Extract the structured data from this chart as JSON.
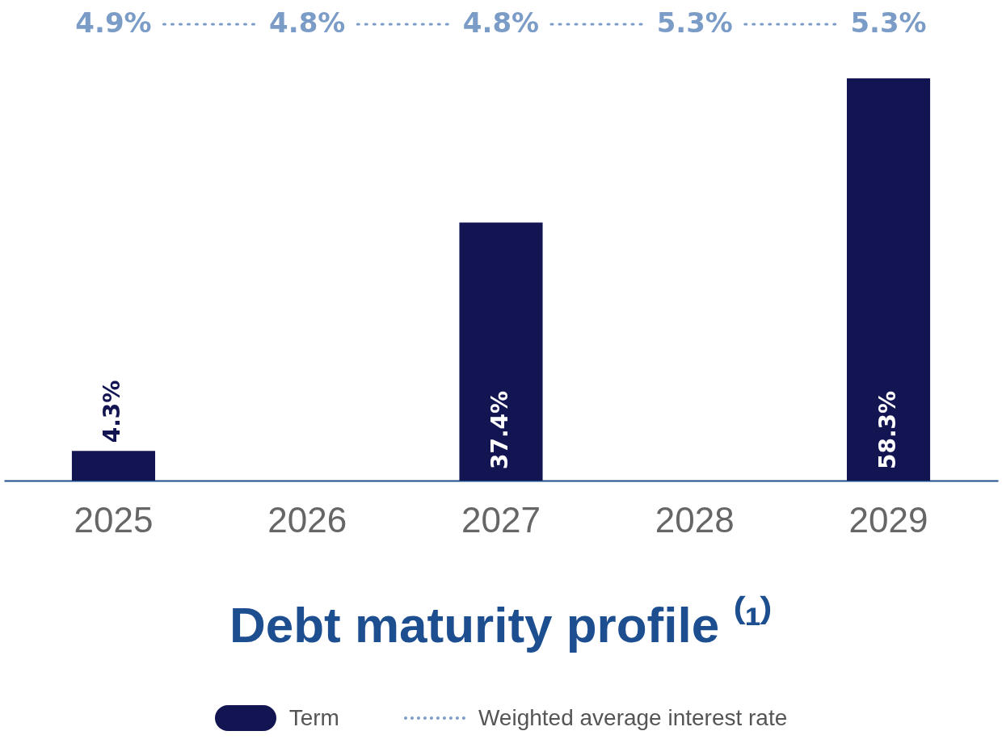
{
  "chart_data": {
    "type": "bar",
    "title": "Debt maturity profile ⁽¹⁾",
    "categories": [
      "2025",
      "2026",
      "2027",
      "2028",
      "2029"
    ],
    "series": [
      {
        "name": "Term",
        "color": "#131452",
        "values": [
          4.3,
          null,
          37.4,
          null,
          58.3
        ],
        "value_labels": [
          "4.3%",
          null,
          "37.4%",
          null,
          "58.3%"
        ]
      }
    ],
    "annotations": [
      "4.9%",
      "4.8%",
      "4.8%",
      "5.3%",
      "5.3%",
      "Weighted average interest rate"
    ],
    "legend": "bottom",
    "grid": false
  }
}
